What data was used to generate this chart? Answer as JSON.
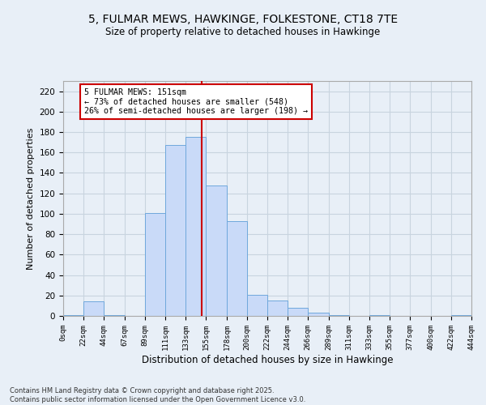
{
  "title_line1": "5, FULMAR MEWS, HAWKINGE, FOLKESTONE, CT18 7TE",
  "title_line2": "Size of property relative to detached houses in Hawkinge",
  "xlabel": "Distribution of detached houses by size in Hawkinge",
  "ylabel": "Number of detached properties",
  "bins": [
    0,
    22,
    44,
    67,
    89,
    111,
    133,
    155,
    178,
    200,
    222,
    244,
    266,
    289,
    311,
    333,
    355,
    377,
    400,
    422,
    444
  ],
  "bin_labels": [
    "0sqm",
    "22sqm",
    "44sqm",
    "67sqm",
    "89sqm",
    "111sqm",
    "133sqm",
    "155sqm",
    "178sqm",
    "200sqm",
    "222sqm",
    "244sqm",
    "266sqm",
    "289sqm",
    "311sqm",
    "333sqm",
    "355sqm",
    "377sqm",
    "400sqm",
    "422sqm",
    "444sqm"
  ],
  "counts": [
    1,
    14,
    1,
    0,
    101,
    167,
    175,
    128,
    93,
    21,
    15,
    8,
    3,
    1,
    0,
    1,
    0,
    0,
    0,
    1
  ],
  "bar_color": "#c9daf8",
  "bar_edge_color": "#6fa8dc",
  "grid_color": "#c8d4df",
  "bg_color": "#e8eff7",
  "property_value": 151,
  "vline_color": "#cc0000",
  "annotation_text": "5 FULMAR MEWS: 151sqm\n← 73% of detached houses are smaller (548)\n26% of semi-detached houses are larger (198) →",
  "annotation_box_color": "white",
  "annotation_border_color": "#cc0000",
  "ylim": [
    0,
    230
  ],
  "yticks": [
    0,
    20,
    40,
    60,
    80,
    100,
    120,
    140,
    160,
    180,
    200,
    220
  ],
  "footer_line1": "Contains HM Land Registry data © Crown copyright and database right 2025.",
  "footer_line2": "Contains public sector information licensed under the Open Government Licence v3.0."
}
